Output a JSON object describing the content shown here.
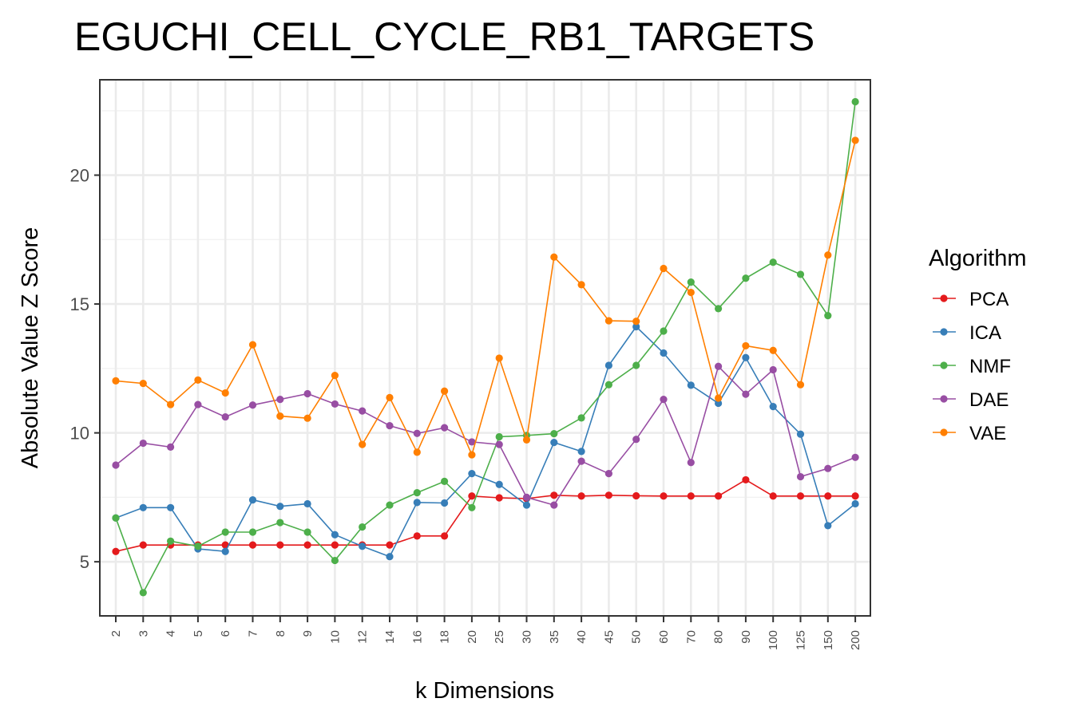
{
  "chart_data": {
    "type": "line",
    "title": "EGUCHI_CELL_CYCLE_RB1_TARGETS",
    "xlabel": "k Dimensions",
    "ylabel": "Absolute Value Z Score",
    "x": [
      "2",
      "3",
      "4",
      "5",
      "6",
      "7",
      "8",
      "9",
      "10",
      "12",
      "14",
      "16",
      "18",
      "20",
      "25",
      "30",
      "35",
      "40",
      "45",
      "50",
      "60",
      "70",
      "80",
      "90",
      "100",
      "125",
      "150",
      "200"
    ],
    "ylim": [
      2.9,
      23.7
    ],
    "yticks": [
      5,
      10,
      15,
      20
    ],
    "grid": true,
    "legend": {
      "title": "Algorithm",
      "placement": "right"
    },
    "series": [
      {
        "name": "PCA",
        "color": "#e41a1c",
        "values": [
          5.4,
          5.65,
          5.65,
          5.65,
          5.65,
          5.65,
          5.65,
          5.65,
          5.65,
          5.65,
          5.65,
          6.0,
          6.0,
          7.55,
          7.48,
          7.45,
          7.58,
          7.55,
          7.58,
          7.56,
          7.55,
          7.55,
          7.55,
          8.18,
          7.55,
          7.55,
          7.55,
          7.55
        ]
      },
      {
        "name": "ICA",
        "color": "#377eb8",
        "values": [
          6.7,
          7.1,
          7.1,
          5.5,
          5.4,
          7.4,
          7.15,
          7.25,
          6.05,
          5.6,
          5.2,
          7.3,
          7.28,
          8.42,
          8.0,
          7.2,
          9.63,
          9.28,
          12.62,
          14.12,
          13.1,
          11.85,
          11.15,
          12.92,
          11.02,
          9.95,
          6.4,
          7.25
        ]
      },
      {
        "name": "NMF",
        "color": "#4daf4a",
        "values": [
          6.7,
          3.8,
          5.8,
          5.6,
          6.15,
          6.15,
          6.52,
          6.15,
          5.05,
          6.35,
          7.2,
          7.68,
          8.12,
          7.1,
          9.85,
          9.9,
          9.97,
          10.58,
          11.87,
          12.62,
          13.95,
          15.85,
          14.82,
          16.0,
          16.62,
          16.15,
          14.55,
          22.85
        ]
      },
      {
        "name": "DAE",
        "color": "#984ea3",
        "values": [
          8.75,
          9.6,
          9.45,
          11.1,
          10.62,
          11.08,
          11.3,
          11.52,
          11.12,
          10.85,
          10.28,
          9.98,
          10.2,
          9.65,
          9.55,
          7.5,
          7.2,
          8.9,
          8.42,
          9.75,
          11.3,
          8.85,
          12.58,
          11.5,
          12.45,
          8.3,
          8.62,
          9.05
        ]
      },
      {
        "name": "VAE",
        "color": "#ff7f00",
        "values": [
          12.02,
          11.92,
          11.1,
          12.05,
          11.55,
          13.42,
          10.65,
          10.57,
          12.23,
          9.55,
          11.37,
          9.25,
          11.62,
          9.15,
          12.9,
          9.73,
          16.82,
          15.75,
          14.35,
          14.33,
          16.38,
          15.45,
          11.35,
          13.38,
          13.2,
          11.87,
          16.9,
          21.35
        ]
      }
    ]
  }
}
